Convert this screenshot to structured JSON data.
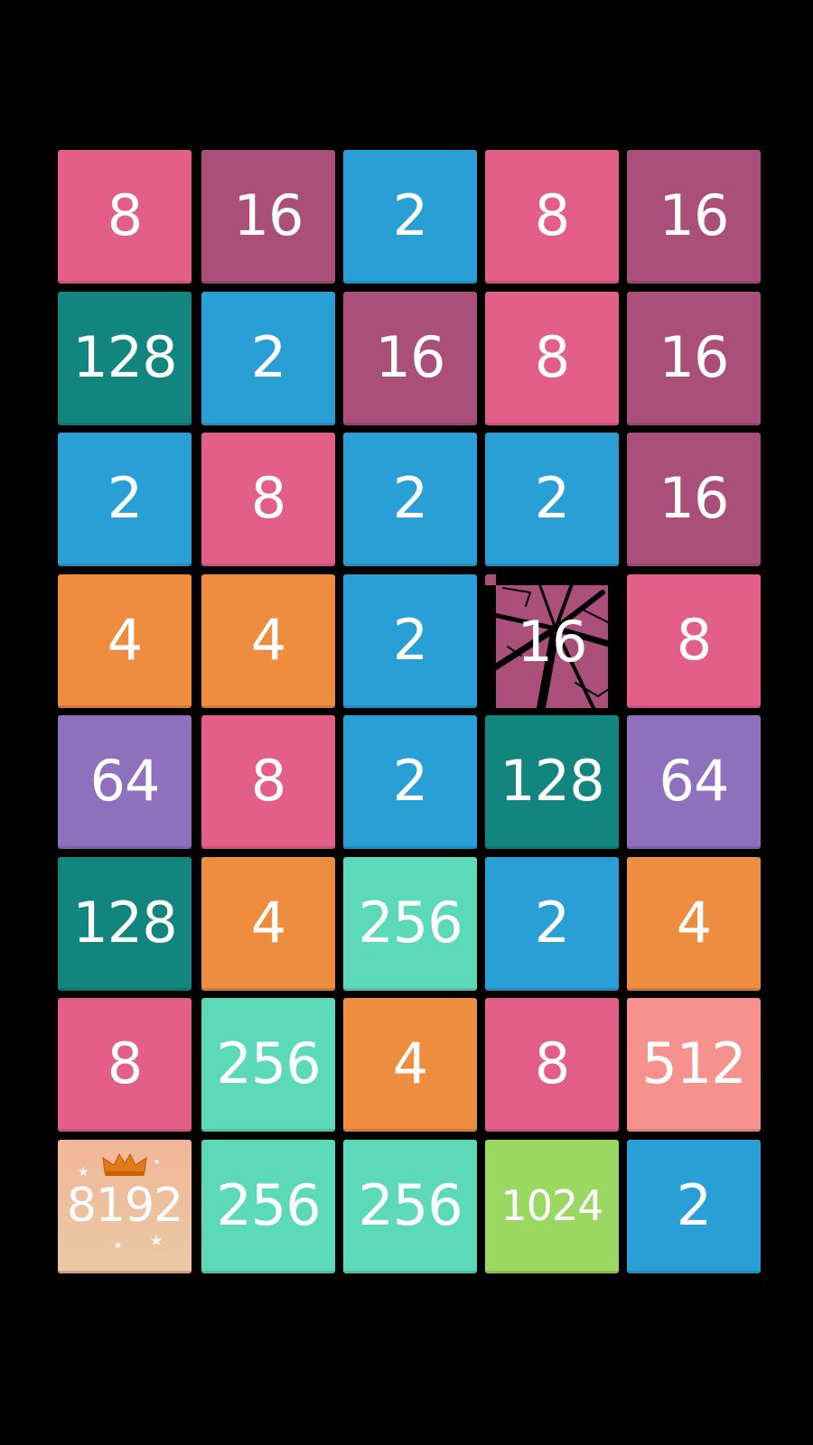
{
  "game": {
    "colors": {
      "2": "#2a9fd6",
      "4": "#ee8c3f",
      "8": "#e45e8a",
      "16": "#a94f7a",
      "64": "#8e70bd",
      "128": "#13857f",
      "256": "#5bd9b9",
      "512": "#f5928e",
      "1024": "#9bd862",
      "8192": "#efbe9c"
    },
    "grid": [
      [
        "8",
        "16",
        "2",
        "8",
        "16"
      ],
      [
        "128",
        "2",
        "16",
        "8",
        "16"
      ],
      [
        "2",
        "8",
        "2",
        "2",
        "16"
      ],
      [
        "4",
        "4",
        "2",
        "16",
        "8"
      ],
      [
        "64",
        "8",
        "2",
        "128",
        "64"
      ],
      [
        "128",
        "4",
        "256",
        "2",
        "4"
      ],
      [
        "8",
        "256",
        "4",
        "8",
        "512"
      ],
      [
        "8192",
        "256",
        "256",
        "1024",
        "2"
      ]
    ],
    "cracked_tile": {
      "row": 3,
      "col": 3
    },
    "crowned_tile": {
      "row": 7,
      "col": 0,
      "icon": "crown-icon"
    }
  }
}
